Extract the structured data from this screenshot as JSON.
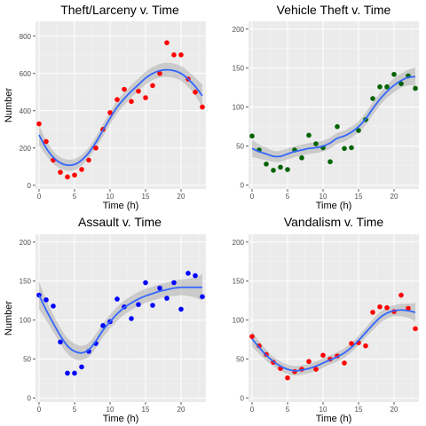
{
  "chart_data": [
    {
      "type": "scatter",
      "title": "Theft/Larceny v. Time",
      "xlabel": "Time (h)",
      "ylabel": "Number",
      "xlim": [
        -0.5,
        23.5
      ],
      "ylim": [
        -20,
        880
      ],
      "x_ticks": [
        0,
        5,
        10,
        15,
        20
      ],
      "y_ticks": [
        0,
        200,
        400,
        600,
        800
      ],
      "point_color": "#ff0000",
      "x": [
        0,
        1,
        2,
        3,
        4,
        5,
        6,
        7,
        8,
        9,
        10,
        11,
        12,
        13,
        14,
        15,
        16,
        17,
        18,
        19,
        20,
        21,
        22,
        23
      ],
      "y": [
        330,
        235,
        135,
        70,
        45,
        55,
        85,
        135,
        200,
        300,
        390,
        460,
        515,
        450,
        505,
        470,
        535,
        600,
        765,
        700,
        700,
        570,
        500,
        420
      ],
      "smooth": [
        270,
        200,
        150,
        120,
        108,
        112,
        135,
        175,
        230,
        295,
        360,
        420,
        465,
        505,
        540,
        575,
        600,
        615,
        620,
        615,
        600,
        570,
        530,
        480
      ],
      "band_halfwidth": [
        55,
        40,
        35,
        30,
        30,
        30,
        28,
        28,
        30,
        32,
        33,
        34,
        34,
        34,
        34,
        35,
        35,
        36,
        38,
        38,
        40,
        42,
        48,
        60
      ]
    },
    {
      "type": "scatter",
      "title": "Vehicle Theft v. Time",
      "xlabel": "Time (h)",
      "ylabel": "",
      "xlim": [
        -0.5,
        23.5
      ],
      "ylim": [
        -5,
        210
      ],
      "x_ticks": [
        0,
        5,
        10,
        15,
        20
      ],
      "y_ticks": [
        0,
        50,
        100,
        150,
        200
      ],
      "point_color": "#006400",
      "x": [
        0,
        1,
        2,
        3,
        4,
        5,
        6,
        7,
        8,
        9,
        10,
        11,
        12,
        13,
        14,
        15,
        16,
        17,
        18,
        19,
        20,
        21,
        22,
        23
      ],
      "y": [
        63,
        45,
        27,
        19,
        23,
        20,
        45,
        35,
        64,
        53,
        48,
        30,
        75,
        47,
        48,
        70,
        84,
        111,
        126,
        126,
        142,
        130,
        140,
        124
      ],
      "smooth": [
        47,
        43,
        40,
        37,
        37,
        40,
        43,
        45,
        47,
        48,
        50,
        54,
        60,
        63,
        68,
        75,
        85,
        98,
        110,
        120,
        128,
        134,
        138,
        139
      ],
      "band_halfwidth": [
        11,
        9,
        8,
        7,
        7,
        7,
        7,
        7,
        7,
        7,
        7,
        7,
        7,
        7,
        7,
        7,
        8,
        8,
        8,
        8,
        9,
        9,
        10,
        12
      ]
    },
    {
      "type": "scatter",
      "title": "Assault v. Time",
      "xlabel": "Time (h)",
      "ylabel": "Number",
      "xlim": [
        -0.5,
        23.5
      ],
      "ylim": [
        -5,
        210
      ],
      "x_ticks": [
        0,
        5,
        10,
        15,
        20
      ],
      "y_ticks": [
        0,
        50,
        100,
        150,
        200
      ],
      "point_color": "#0000ff",
      "x": [
        0,
        1,
        2,
        3,
        4,
        5,
        6,
        7,
        8,
        9,
        10,
        11,
        12,
        13,
        14,
        15,
        16,
        17,
        18,
        19,
        20,
        21,
        22,
        23
      ],
      "y": [
        132,
        126,
        118,
        72,
        32,
        32,
        40,
        60,
        70,
        93,
        98,
        127,
        117,
        102,
        120,
        148,
        119,
        141,
        128,
        148,
        114,
        160,
        157,
        130
      ],
      "smooth": [
        132,
        113,
        96,
        80,
        67,
        60,
        58,
        62,
        73,
        87,
        98,
        108,
        116,
        122,
        127,
        131,
        134,
        137,
        139,
        141,
        142,
        142,
        142,
        142
      ],
      "band_halfwidth": [
        18,
        13,
        11,
        10,
        10,
        10,
        9,
        9,
        9,
        9,
        9,
        9,
        9,
        9,
        9,
        9,
        9,
        9,
        9,
        10,
        10,
        11,
        13,
        17
      ]
    },
    {
      "type": "scatter",
      "title": "Vandalism v. Time",
      "xlabel": "Time (h)",
      "ylabel": "",
      "xlim": [
        -0.5,
        23.5
      ],
      "ylim": [
        -5,
        210
      ],
      "x_ticks": [
        0,
        5,
        10,
        15,
        20
      ],
      "y_ticks": [
        0,
        50,
        100,
        150,
        200
      ],
      "point_color": "#ff0000",
      "x": [
        0,
        1,
        2,
        3,
        4,
        5,
        6,
        7,
        8,
        9,
        10,
        11,
        12,
        13,
        14,
        15,
        16,
        17,
        18,
        19,
        20,
        21,
        22,
        23
      ],
      "y": [
        79,
        67,
        56,
        46,
        38,
        26,
        34,
        37,
        47,
        37,
        55,
        50,
        54,
        45,
        70,
        71,
        67,
        110,
        117,
        116,
        111,
        132,
        115,
        89
      ],
      "smooth": [
        76,
        65,
        55,
        47,
        41,
        37,
        35,
        36,
        38,
        41,
        45,
        49,
        53,
        58,
        65,
        74,
        84,
        94,
        103,
        109,
        112,
        113,
        112,
        110
      ],
      "band_halfwidth": [
        10,
        8,
        7,
        6,
        6,
        6,
        6,
        6,
        6,
        6,
        6,
        6,
        6,
        6,
        6,
        6,
        6,
        7,
        7,
        7,
        7,
        8,
        9,
        12
      ]
    }
  ]
}
